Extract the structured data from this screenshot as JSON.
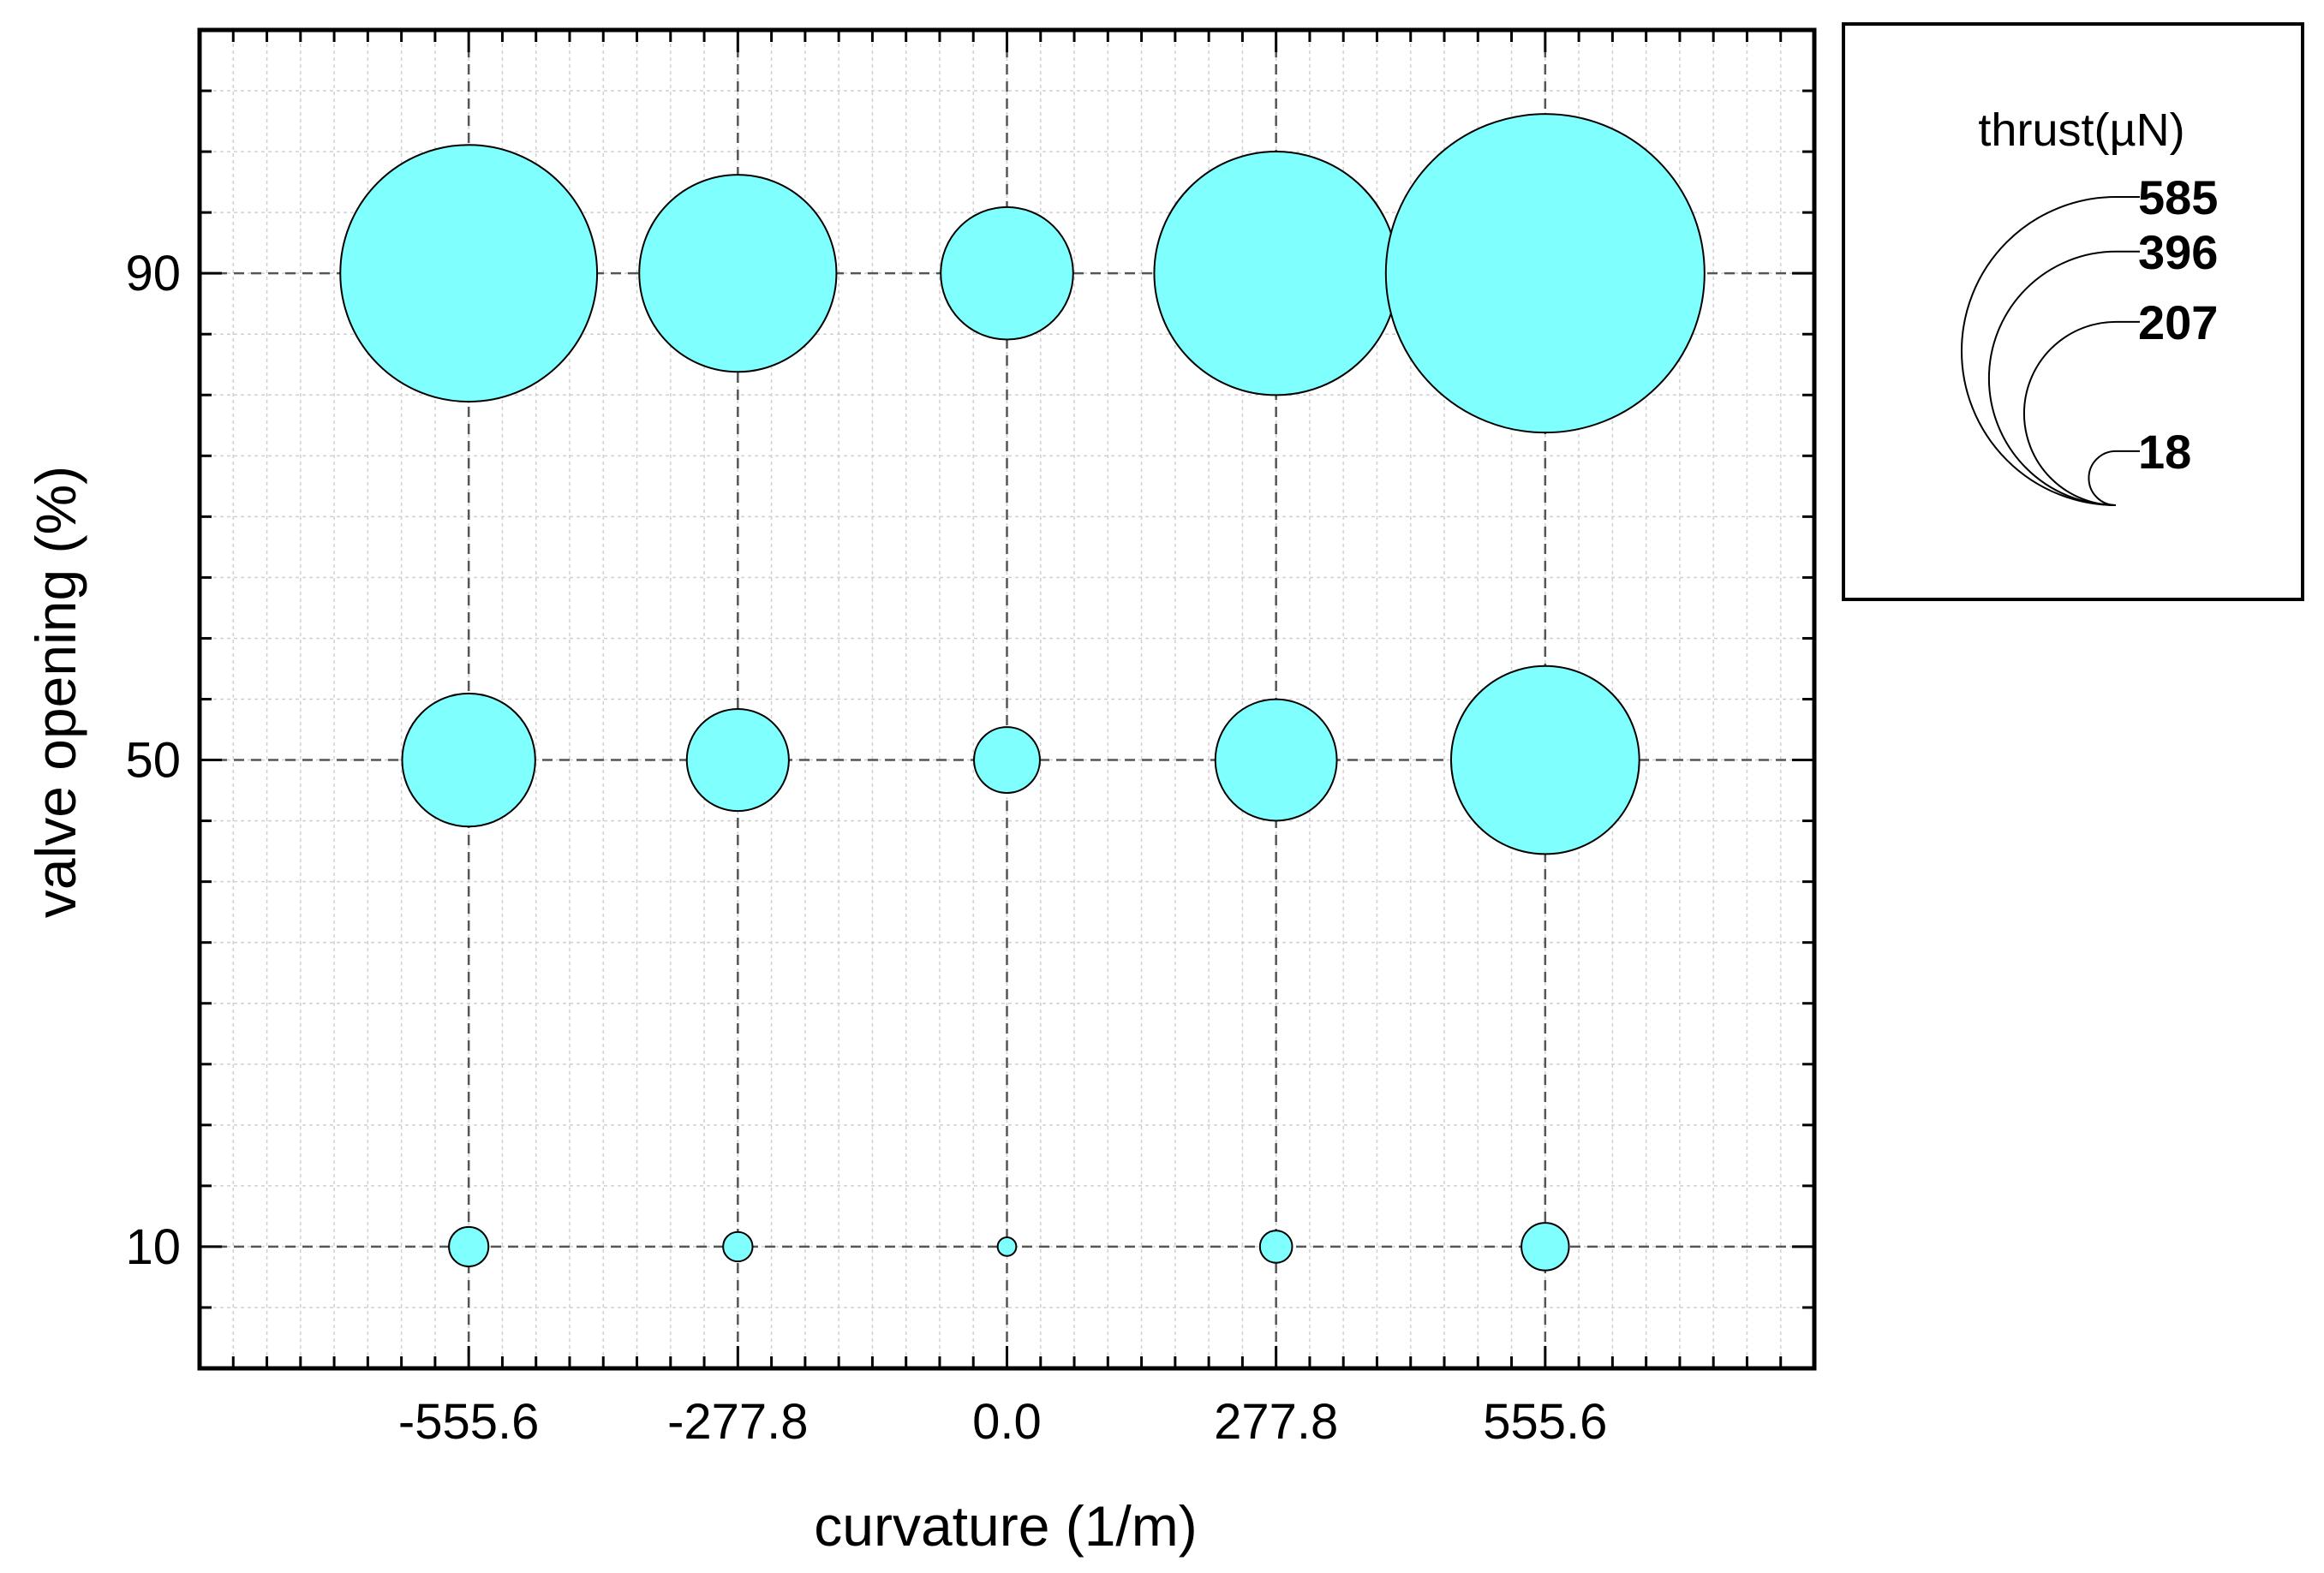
{
  "chart_data": {
    "type": "scatter",
    "subtype": "bubble",
    "title": "",
    "xlabel": "curvature (1/m)",
    "ylabel": "valve opening (%)",
    "x_ticks": [
      "-555.6",
      "-277.8",
      "0.0",
      "277.8",
      "555.6"
    ],
    "y_ticks": [
      "10",
      "50",
      "90"
    ],
    "xlim": [
      -833.4,
      833.4
    ],
    "ylim": [
      0,
      110
    ],
    "grid": true,
    "size_variable": "thrust(µN)",
    "points": [
      {
        "x": -555.6,
        "y": 90,
        "thrust": 380
      },
      {
        "x": -277.8,
        "y": 90,
        "thrust": 224
      },
      {
        "x": 0.0,
        "y": 90,
        "thrust": 101
      },
      {
        "x": 277.8,
        "y": 90,
        "thrust": 342
      },
      {
        "x": 555.6,
        "y": 90,
        "thrust": 585
      },
      {
        "x": -555.6,
        "y": 50,
        "thrust": 102
      },
      {
        "x": -277.8,
        "y": 50,
        "thrust": 60
      },
      {
        "x": 0.0,
        "y": 50,
        "thrust": 25
      },
      {
        "x": 277.8,
        "y": 50,
        "thrust": 85
      },
      {
        "x": 555.6,
        "y": 50,
        "thrust": 204
      },
      {
        "x": -555.6,
        "y": 10,
        "thrust": 9
      },
      {
        "x": -277.8,
        "y": 10,
        "thrust": 5
      },
      {
        "x": 0.0,
        "y": 10,
        "thrust": 2
      },
      {
        "x": 277.8,
        "y": 10,
        "thrust": 6
      },
      {
        "x": 555.6,
        "y": 10,
        "thrust": 13
      }
    ],
    "legend": {
      "title": "thrust(µN)",
      "values": [
        585,
        396,
        207,
        18
      ],
      "labels": [
        "585",
        "396",
        "207",
        "18"
      ],
      "placement": "right"
    },
    "colors": {
      "bubble_fill": "#80ffff",
      "bubble_stroke": "#000000",
      "grid_major": "#555555",
      "grid_minor": "#d0d0d0"
    }
  }
}
